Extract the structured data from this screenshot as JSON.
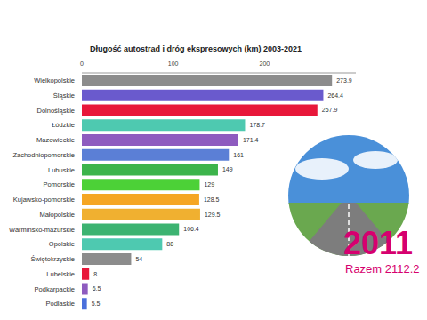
{
  "chart_data": {
    "type": "bar",
    "orientation": "horizontal",
    "title": "Długość autostrad i dróg ekspresowych (km) 2003-2021",
    "categories": [
      "Wielkopolskie",
      "Śląskie",
      "Dolnośląskie",
      "Łódzkie",
      "Mazowieckie",
      "Zachodniopomorskie",
      "Lubuskie",
      "Pomorskie",
      "Kujawsko-pomorskie",
      "Małopolskie",
      "Warmińsko-mazurskie",
      "Opolskie",
      "Świętokrzyskie",
      "Lubelskie",
      "Podkarpackie",
      "Podlaskie"
    ],
    "values": [
      273.9,
      264.4,
      257.9,
      178.7,
      171.4,
      161,
      149,
      129,
      128.5,
      129.5,
      106.4,
      88,
      54,
      8,
      6.5,
      5.5
    ],
    "colors": [
      "#8c8c8c",
      "#6a5acd",
      "#e8173a",
      "#4ec9b0",
      "#8e5bbf",
      "#5b7fd6",
      "#3cb44b",
      "#4cd137",
      "#f5a623",
      "#f0b030",
      "#3cb371",
      "#4ec9b0",
      "#8c8c8c",
      "#e8173a",
      "#8e5bbf",
      "#4a6fdc"
    ],
    "xlim": [
      0,
      300
    ],
    "xticks": [
      0,
      100,
      200
    ],
    "data_labels": true,
    "grid": false,
    "annotations": [
      "2011",
      "Razem 2112.2"
    ]
  }
}
